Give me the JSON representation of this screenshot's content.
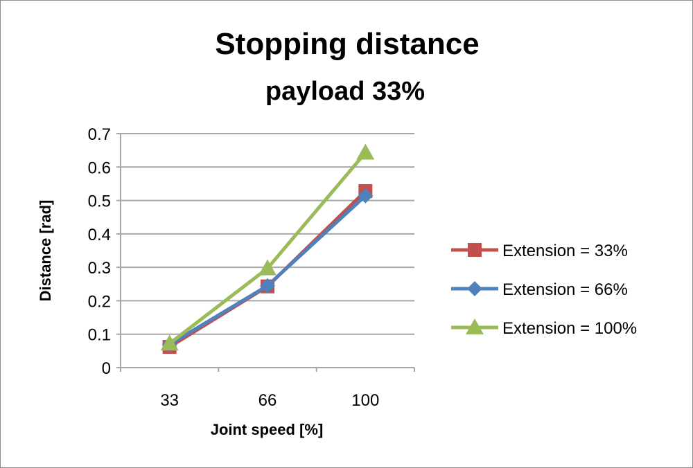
{
  "chart_data": {
    "type": "line",
    "title": "Stopping distance",
    "subtitle": "payload 33%",
    "xlabel": "Joint speed [%]",
    "ylabel": "Distance [rad]",
    "categories": [
      "33",
      "66",
      "100"
    ],
    "ylim": [
      0,
      0.7
    ],
    "yticks": [
      "0",
      "0.1",
      "0.2",
      "0.3",
      "0.4",
      "0.5",
      "0.6",
      "0.7"
    ],
    "grid": true,
    "legend_position": "right",
    "series": [
      {
        "name": "Extension = 33%",
        "values": [
          0.062,
          0.243,
          0.528
        ],
        "color": "#c0504d",
        "marker": "square"
      },
      {
        "name": "Extension = 66%",
        "values": [
          0.069,
          0.245,
          0.514
        ],
        "color": "#4f81bd",
        "marker": "diamond"
      },
      {
        "name": "Extension = 100%",
        "values": [
          0.072,
          0.297,
          0.643
        ],
        "color": "#9bbb59",
        "marker": "triangle"
      }
    ]
  }
}
